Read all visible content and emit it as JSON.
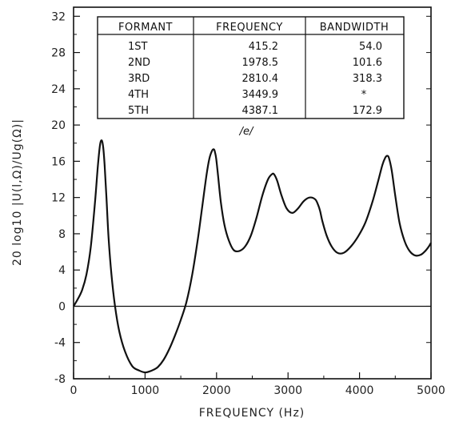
{
  "chart_data": {
    "type": "line",
    "title": "",
    "xlabel": "FREQUENCY (Hz)",
    "ylabel": "20 log10 |U(l,Ω)/Ug(Ω)|",
    "xlim": [
      0,
      5000
    ],
    "ylim": [
      -8,
      33
    ],
    "x_ticks": [
      0,
      1000,
      2000,
      3000,
      4000,
      5000
    ],
    "y_ticks": [
      -8,
      -4,
      0,
      4,
      8,
      12,
      16,
      20,
      24,
      28,
      32
    ],
    "grid": false,
    "reference_line_y": 0,
    "series": [
      {
        "x": [
          0,
          60,
          120,
          180,
          240,
          300,
          340,
          370,
          395,
          415,
          435,
          460,
          490,
          530,
          580,
          640,
          720,
          820,
          920,
          1000,
          1060,
          1120,
          1180,
          1260,
          1340,
          1420,
          1500,
          1580,
          1660,
          1740,
          1800,
          1860,
          1900,
          1940,
          1965,
          1978,
          1995,
          2020,
          2060,
          2110,
          2170,
          2240,
          2320,
          2400,
          2480,
          2560,
          2640,
          2720,
          2780,
          2810,
          2850,
          2910,
          2980,
          3060,
          3140,
          3220,
          3300,
          3380,
          3420,
          3449,
          3480,
          3540,
          3610,
          3690,
          3780,
          3880,
          3980,
          4080,
          4180,
          4260,
          4320,
          4360,
          4387,
          4410,
          4450,
          4500,
          4560,
          4630,
          4700,
          4780,
          4860,
          4920,
          4970,
          5000
        ],
        "y": [
          0,
          0.8,
          1.8,
          3.5,
          6.5,
          11.5,
          15.5,
          17.8,
          18.3,
          17.5,
          15.5,
          12,
          7.5,
          3.5,
          0,
          -2.8,
          -5,
          -6.6,
          -7.1,
          -7.3,
          -7.2,
          -7.0,
          -6.7,
          -5.9,
          -4.7,
          -3.2,
          -1.5,
          0.5,
          3.5,
          7.5,
          11,
          14.5,
          16.3,
          17.2,
          17.3,
          17.0,
          16.3,
          14.5,
          11.5,
          9,
          7.3,
          6.2,
          6.1,
          6.6,
          7.8,
          9.8,
          12.2,
          14.0,
          14.6,
          14.5,
          13.8,
          12.2,
          10.8,
          10.3,
          10.8,
          11.6,
          12.0,
          11.8,
          11.2,
          10.5,
          9.4,
          7.8,
          6.6,
          5.9,
          5.9,
          6.6,
          7.7,
          9.2,
          11.5,
          13.8,
          15.6,
          16.4,
          16.6,
          16.4,
          15.0,
          12.2,
          9.2,
          7.2,
          6.1,
          5.6,
          5.7,
          6.1,
          6.6,
          7.0
        ]
      }
    ],
    "table": {
      "headers": [
        "FORMANT",
        "FREQUENCY",
        "BANDWIDTH"
      ],
      "rows": [
        [
          "1ST",
          "415.2",
          "54.0"
        ],
        [
          "2ND",
          "1978.5",
          "101.6"
        ],
        [
          "3RD",
          "2810.4",
          "318.3"
        ],
        [
          "4TH",
          "3449.9",
          "*"
        ],
        [
          "5TH",
          "4387.1",
          "172.9"
        ]
      ],
      "caption": "/e/"
    }
  }
}
